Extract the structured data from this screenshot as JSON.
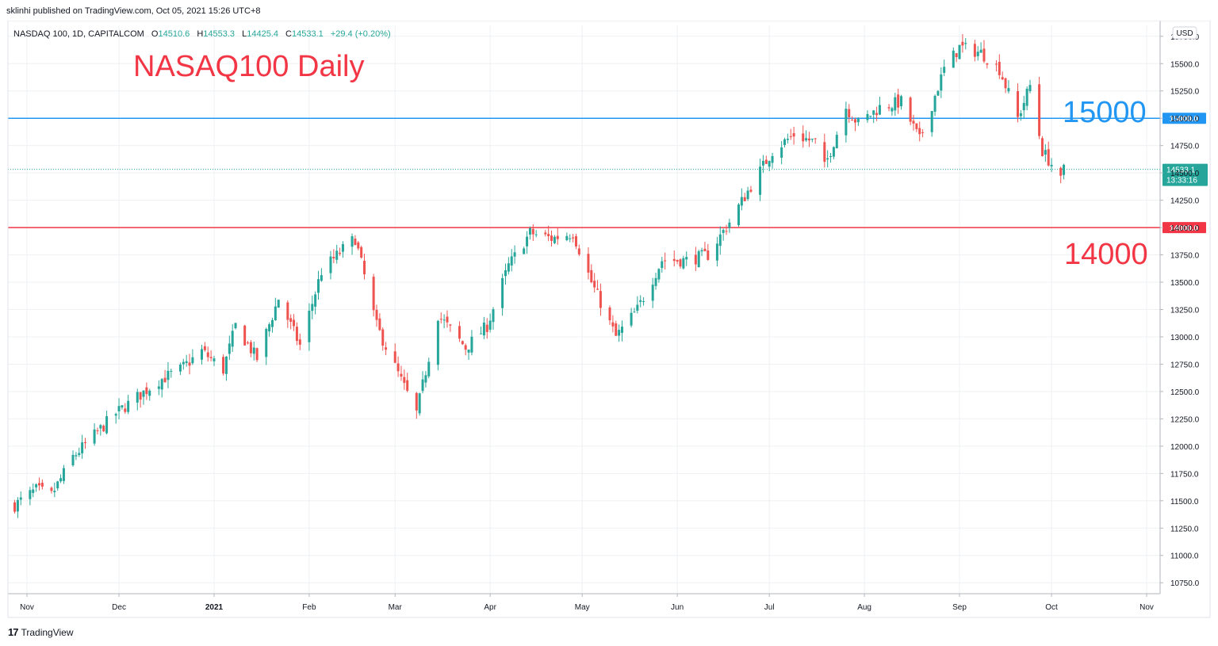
{
  "header": {
    "publish_line": "sklinhi published on TradingView.com, Oct 05, 2021 15:26 UTC+8"
  },
  "legend": {
    "symbol": "NASDAQ 100, 1D, CAPITALCOM",
    "open_label": "O",
    "open": "14510.6",
    "high_label": "H",
    "high": "14553.3",
    "low_label": "L",
    "low": "14425.4",
    "close_label": "C",
    "close": "14533.1",
    "change": "+29.4 (+0.20%)"
  },
  "currency_button": "USD",
  "footer": {
    "logo": "17",
    "brand": "TradingView"
  },
  "colors": {
    "up": "#26a69a",
    "down": "#ef5350",
    "line_15000": "#2196f3",
    "line_14000": "#f23645",
    "grid": "#eef0f3",
    "text": "#131722"
  },
  "chart_data": {
    "type": "candlestick",
    "title": "NASAQ100 Daily",
    "ylim": [
      10650,
      15850
    ],
    "y_ticks": [
      10750,
      11000,
      11250,
      11500,
      11750,
      12000,
      12250,
      12500,
      12750,
      13000,
      13250,
      13500,
      13750,
      14000,
      14250,
      14500,
      14750,
      15000,
      15250,
      15500,
      15750
    ],
    "y_tick_labels": [
      "10750.0",
      "11000.0",
      "11250.0",
      "11500.0",
      "11750.0",
      "12000.0",
      "12250.0",
      "12500.0",
      "12750.0",
      "13000.0",
      "13250.0",
      "13500.0",
      "13750.0",
      "14000.0",
      "14250.0",
      "14500.0",
      "14750.0",
      "15000.0",
      "15250.0",
      "15500.0",
      "15750.0"
    ],
    "x_ticks": [
      {
        "label": "Nov",
        "date": "2020-11-01"
      },
      {
        "label": "Dec",
        "date": "2020-12-01"
      },
      {
        "label": "2021",
        "date": "2021-01-01"
      },
      {
        "label": "Feb",
        "date": "2021-02-01"
      },
      {
        "label": "Mar",
        "date": "2021-03-01"
      },
      {
        "label": "Apr",
        "date": "2021-04-01"
      },
      {
        "label": "May",
        "date": "2021-05-01"
      },
      {
        "label": "Jun",
        "date": "2021-06-01"
      },
      {
        "label": "Jul",
        "date": "2021-07-01"
      },
      {
        "label": "Aug",
        "date": "2021-08-01"
      },
      {
        "label": "Sep",
        "date": "2021-09-01"
      },
      {
        "label": "Oct",
        "date": "2021-10-01"
      },
      {
        "label": "Nov",
        "date": "2021-11-01"
      }
    ],
    "horizontal_lines": [
      {
        "value": 15000,
        "label": "15000",
        "axis_label": "15000.0",
        "color": "#2196f3"
      },
      {
        "value": 14000,
        "label": "14000",
        "axis_label": "14000.0",
        "color": "#f23645"
      }
    ],
    "last_price": {
      "value": 14533.1,
      "label": "14533.1",
      "countdown": "13:33:16"
    },
    "closes": [
      {
        "date": "2020-10-28",
        "close": 11460
      },
      {
        "date": "2020-11-04",
        "close": 11600
      },
      {
        "date": "2020-11-09",
        "close": 11550
      },
      {
        "date": "2020-11-16",
        "close": 11900
      },
      {
        "date": "2020-11-23",
        "close": 12100
      },
      {
        "date": "2020-11-30",
        "close": 12300
      },
      {
        "date": "2020-12-07",
        "close": 12450
      },
      {
        "date": "2020-12-14",
        "close": 12600
      },
      {
        "date": "2020-12-21",
        "close": 12700
      },
      {
        "date": "2020-12-28",
        "close": 12870
      },
      {
        "date": "2021-01-04",
        "close": 12700
      },
      {
        "date": "2021-01-08",
        "close": 13100
      },
      {
        "date": "2021-01-15",
        "close": 12800
      },
      {
        "date": "2021-01-22",
        "close": 13350
      },
      {
        "date": "2021-01-29",
        "close": 12920
      },
      {
        "date": "2021-02-05",
        "close": 13600
      },
      {
        "date": "2021-02-12",
        "close": 13800
      },
      {
        "date": "2021-02-16",
        "close": 13900
      },
      {
        "date": "2021-02-23",
        "close": 13100
      },
      {
        "date": "2021-03-03",
        "close": 12600
      },
      {
        "date": "2021-03-08",
        "close": 12300
      },
      {
        "date": "2021-03-15",
        "close": 13200
      },
      {
        "date": "2021-03-24",
        "close": 12900
      },
      {
        "date": "2021-03-31",
        "close": 13100
      },
      {
        "date": "2021-04-07",
        "close": 13650
      },
      {
        "date": "2021-04-14",
        "close": 13950
      },
      {
        "date": "2021-04-21",
        "close": 13900
      },
      {
        "date": "2021-04-28",
        "close": 13950
      },
      {
        "date": "2021-05-04",
        "close": 13500
      },
      {
        "date": "2021-05-12",
        "close": 13000
      },
      {
        "date": "2021-05-19",
        "close": 13250
      },
      {
        "date": "2021-05-27",
        "close": 13700
      },
      {
        "date": "2021-06-04",
        "close": 13700
      },
      {
        "date": "2021-06-11",
        "close": 13750
      },
      {
        "date": "2021-06-18",
        "close": 14050
      },
      {
        "date": "2021-06-25",
        "close": 14380
      },
      {
        "date": "2021-07-02",
        "close": 14700
      },
      {
        "date": "2021-07-09",
        "close": 14850
      },
      {
        "date": "2021-07-16",
        "close": 14780
      },
      {
        "date": "2021-07-19",
        "close": 14550
      },
      {
        "date": "2021-07-26",
        "close": 15100
      },
      {
        "date": "2021-07-30",
        "close": 14950
      },
      {
        "date": "2021-08-06",
        "close": 15100
      },
      {
        "date": "2021-08-13",
        "close": 15150
      },
      {
        "date": "2021-08-19",
        "close": 14800
      },
      {
        "date": "2021-08-27",
        "close": 15450
      },
      {
        "date": "2021-09-01",
        "close": 15650
      },
      {
        "date": "2021-09-08",
        "close": 15600
      },
      {
        "date": "2021-09-14",
        "close": 15450
      },
      {
        "date": "2021-09-20",
        "close": 15000
      },
      {
        "date": "2021-09-24",
        "close": 15300
      },
      {
        "date": "2021-09-28",
        "close": 14700
      },
      {
        "date": "2021-10-01",
        "close": 14580
      },
      {
        "date": "2021-10-04",
        "close": 14420
      },
      {
        "date": "2021-10-05",
        "close": 14533.1
      }
    ]
  }
}
